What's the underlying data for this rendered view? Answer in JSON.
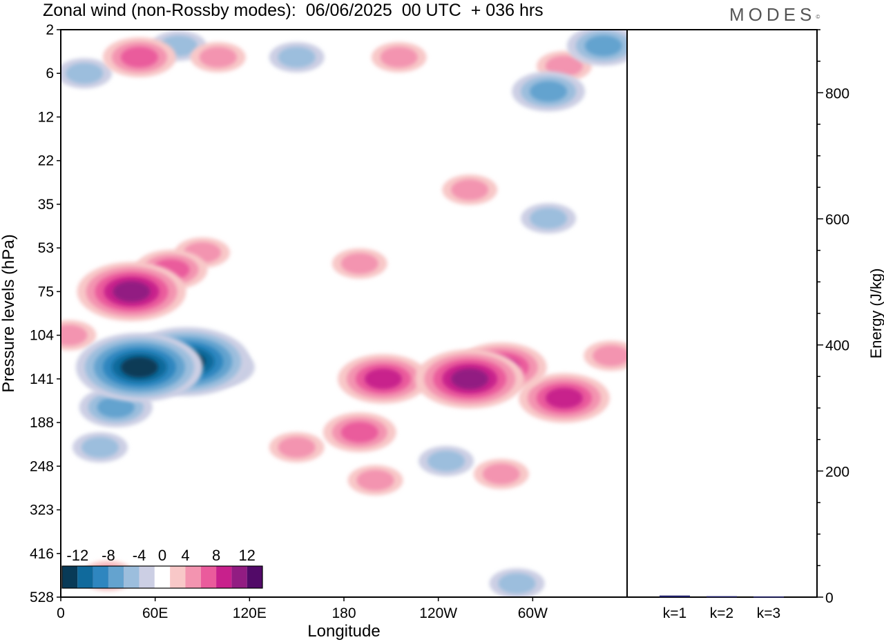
{
  "title": "Zonal wind (non-Rossby modes):  06/06/2025  00 UTC  + 036 hrs",
  "logo_text": "MODES",
  "logo_mark": "©",
  "chart_data": [
    {
      "type": "heatmap",
      "title": "Zonal wind (non-Rossby modes):  06/06/2025  00 UTC  + 036 hrs",
      "xlabel": "Longitude",
      "ylabel": "Pressure levels (hPa)",
      "x_ticks": [
        "0",
        "60E",
        "120E",
        "180",
        "120W",
        "60W"
      ],
      "x_tick_values": [
        0,
        60,
        120,
        180,
        240,
        300
      ],
      "xlim": [
        0,
        360
      ],
      "y_ticks": [
        "2",
        "6",
        "12",
        "22",
        "35",
        "53",
        "75",
        "104",
        "141",
        "188",
        "248",
        "323",
        "416",
        "528"
      ],
      "colorbar": {
        "tick_labels": [
          "-12",
          "-8",
          "-4",
          "0",
          "4",
          "8",
          "12"
        ],
        "levels": [
          -14,
          -12,
          -10,
          -8,
          -6,
          -4,
          -2,
          2,
          4,
          6,
          8,
          10,
          12,
          14
        ],
        "colors": [
          "#083a57",
          "#106a9c",
          "#2f86bf",
          "#64a3cf",
          "#9cbedd",
          "#cccfe4",
          "#ffffff",
          "#f8c8c8",
          "#f394b0",
          "#ea5b9c",
          "#c8208c",
          "#921c82",
          "#520a68"
        ]
      },
      "cells": [
        {
          "lon": 15,
          "p": 6,
          "v": -4
        },
        {
          "lon": 50,
          "p": 4,
          "v": 5
        },
        {
          "lon": 75,
          "p": 3,
          "v": -4
        },
        {
          "lon": 100,
          "p": 4,
          "v": 4
        },
        {
          "lon": 150,
          "p": 4,
          "v": -3
        },
        {
          "lon": 215,
          "p": 4,
          "v": 3
        },
        {
          "lon": 320,
          "p": 5,
          "v": 4
        },
        {
          "lon": 345,
          "p": 3,
          "v": -5
        },
        {
          "lon": 310,
          "p": 8,
          "v": -5
        },
        {
          "lon": 45,
          "p": 75,
          "v": 9
        },
        {
          "lon": 70,
          "p": 63,
          "v": 6
        },
        {
          "lon": 90,
          "p": 55,
          "v": 3
        },
        {
          "lon": 5,
          "p": 104,
          "v": 4
        },
        {
          "lon": 50,
          "p": 130,
          "v": -12
        },
        {
          "lon": 80,
          "p": 125,
          "v": -11
        },
        {
          "lon": 35,
          "p": 170,
          "v": -5
        },
        {
          "lon": 100,
          "p": 130,
          "v": -5
        },
        {
          "lon": 25,
          "p": 220,
          "v": -3
        },
        {
          "lon": 150,
          "p": 220,
          "v": 3
        },
        {
          "lon": 190,
          "p": 200,
          "v": 5
        },
        {
          "lon": 205,
          "p": 141,
          "v": 8
        },
        {
          "lon": 260,
          "p": 141,
          "v": 10
        },
        {
          "lon": 280,
          "p": 130,
          "v": 8
        },
        {
          "lon": 320,
          "p": 160,
          "v": 7
        },
        {
          "lon": 350,
          "p": 120,
          "v": 4
        },
        {
          "lon": 245,
          "p": 240,
          "v": -4
        },
        {
          "lon": 200,
          "p": 270,
          "v": 4
        },
        {
          "lon": 280,
          "p": 260,
          "v": 3
        },
        {
          "lon": 190,
          "p": 60,
          "v": 3
        },
        {
          "lon": 260,
          "p": 30,
          "v": 3
        },
        {
          "lon": 310,
          "p": 40,
          "v": -3
        },
        {
          "lon": 30,
          "p": 470,
          "v": 3
        },
        {
          "lon": 290,
          "p": 490,
          "v": -3
        }
      ]
    },
    {
      "type": "bar",
      "categories": [
        "k=1",
        "k=2",
        "k=3"
      ],
      "values": [
        2.5,
        1.5,
        1.0
      ],
      "ylabel": "Energy (J/kg)",
      "ylim": [
        0,
        900
      ],
      "y_ticks": [
        "200",
        "400",
        "600",
        "800"
      ],
      "y_tick_values": [
        200,
        400,
        600,
        800
      ],
      "bar_color": "#20206a"
    }
  ]
}
